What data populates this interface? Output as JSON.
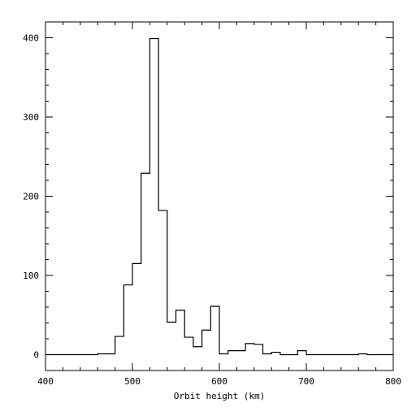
{
  "chart_data": {
    "type": "histogram",
    "title": "",
    "xlabel": "Orbit height (km)",
    "ylabel": "",
    "xlim": [
      400,
      800
    ],
    "ylim": [
      -20,
      420
    ],
    "xticks": [
      400,
      500,
      600,
      700,
      800
    ],
    "yticks": [
      0,
      100,
      200,
      300,
      400
    ],
    "grid": false,
    "series": [
      {
        "bin_edges": [
          400,
          460,
          470,
          480,
          490,
          500,
          510,
          520,
          530,
          540,
          550,
          560,
          570,
          580,
          590,
          600,
          610,
          620,
          630,
          640,
          650,
          660,
          670,
          680,
          690,
          700,
          760,
          770,
          800
        ],
        "counts": [
          0,
          1,
          1,
          23,
          88,
          115,
          229,
          399,
          182,
          41,
          56,
          22,
          10,
          31,
          61,
          1,
          5,
          5,
          14,
          13,
          1,
          3,
          0,
          0,
          5,
          0,
          1,
          0
        ]
      }
    ],
    "colors": {
      "line": "#000000",
      "background": "#ffffff"
    }
  }
}
